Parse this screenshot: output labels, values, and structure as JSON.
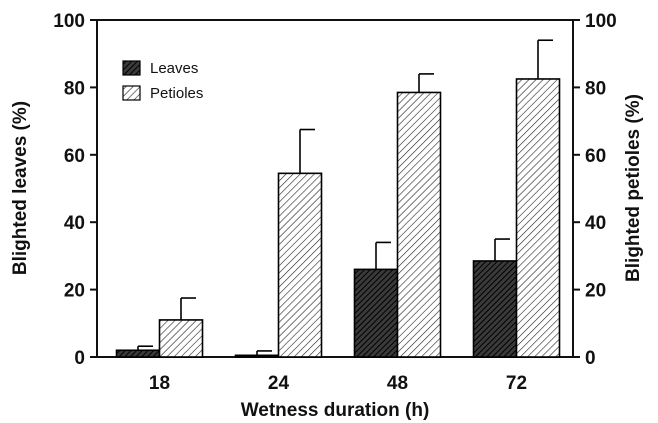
{
  "chart_data": {
    "type": "bar",
    "categories": [
      "18",
      "24",
      "48",
      "72"
    ],
    "series": [
      {
        "name": "Leaves",
        "values": [
          2,
          0.5,
          26,
          28.5
        ],
        "errors": [
          1.2,
          1.3,
          8,
          6.5
        ],
        "color": "#2a2a2a",
        "pattern": "dense-hatch"
      },
      {
        "name": "Petioles",
        "values": [
          11,
          54.5,
          78.5,
          82.5
        ],
        "errors": [
          6.5,
          13,
          5.5,
          11.5
        ],
        "color": "#f2f2f2",
        "pattern": "light-hatch"
      }
    ],
    "xlabel": "Wetness duration (h)",
    "ylabel": "Blighted leaves (%)",
    "y2label": "Blighted petioles (%)",
    "ylim": [
      0,
      100
    ],
    "yticks": [
      0,
      20,
      40,
      60,
      80,
      100
    ],
    "legend_position": "top-left",
    "grid": false
  }
}
